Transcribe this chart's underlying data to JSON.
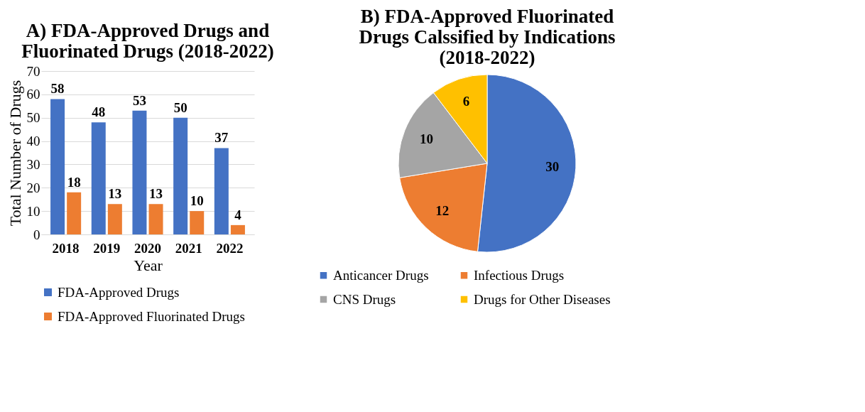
{
  "chart_data": [
    {
      "type": "bar",
      "title": "A) FDA-Approved Drugs and Fluorinated Drugs (2018-2022)",
      "xlabel": "Year",
      "ylabel": "Total Number of Drugs",
      "categories": [
        "2018",
        "2019",
        "2020",
        "2021",
        "2022"
      ],
      "series": [
        {
          "name": "FDA-Approved Drugs",
          "color": "#4472c4",
          "values": [
            58,
            48,
            53,
            50,
            37
          ]
        },
        {
          "name": "FDA-Approved Fluorinated Drugs",
          "color": "#ed7d31",
          "values": [
            18,
            13,
            13,
            10,
            4
          ]
        }
      ],
      "ylim": [
        0,
        70
      ],
      "yticks": [
        0,
        10,
        20,
        30,
        40,
        50,
        60,
        70
      ],
      "grid": "y",
      "legend": "bottom",
      "data_labels": true
    },
    {
      "type": "pie",
      "title": "B) FDA-Approved Fluorinated Drugs Calssified by Indications (2018-2022)",
      "categories": [
        "Anticancer Drugs",
        "Infectious Drugs",
        "CNS Drugs",
        "Drugs for Other Diseases"
      ],
      "values": [
        30,
        12,
        10,
        6
      ],
      "colors": [
        "#4472c4",
        "#ed7d31",
        "#a5a5a5",
        "#ffc000"
      ],
      "legend": "bottom",
      "data_labels": true
    }
  ]
}
